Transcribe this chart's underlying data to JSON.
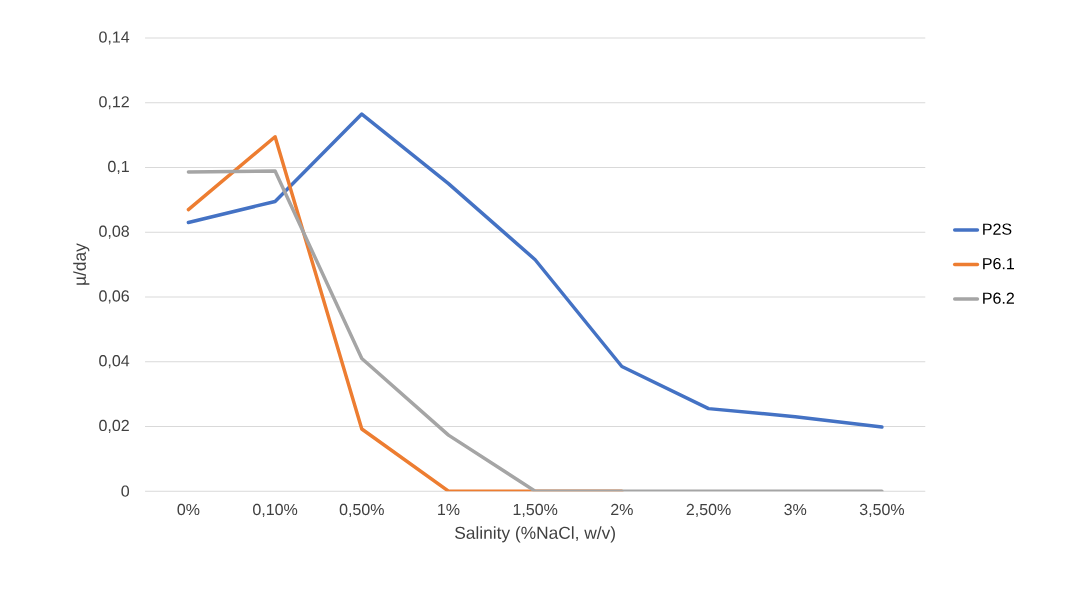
{
  "chart_data": {
    "type": "line",
    "xlabel": "Salinity (%NaCl, w/v)",
    "ylabel": "µ/day",
    "categories": [
      "0%",
      "0,10%",
      "0,50%",
      "1%",
      "1,50%",
      "2%",
      "2,50%",
      "3%",
      "3,50%"
    ],
    "series": [
      {
        "name": "P2S",
        "color": "#4472c4",
        "values": [
          0.083,
          0.0895,
          0.1165,
          0.095,
          0.0715,
          0.0385,
          0.0255,
          0.023,
          0.0198
        ]
      },
      {
        "name": "P6.1",
        "color": "#ed7d31",
        "values": [
          0.087,
          0.1095,
          0.0192,
          0,
          0,
          0,
          null,
          null,
          null
        ]
      },
      {
        "name": "P6.2",
        "color": "#a5a5a5",
        "values": [
          0.0986,
          0.0989,
          0.041,
          0.0173,
          0,
          0,
          0,
          0,
          0
        ]
      }
    ],
    "ylim": [
      0,
      0.14
    ],
    "yticks": [
      0,
      {
        "value": 0.02,
        "label": "0,02"
      },
      {
        "value": 0.04,
        "label": "0,04"
      },
      {
        "value": 0.06,
        "label": "0,06"
      },
      {
        "value": 0.08,
        "label": "0,08"
      },
      {
        "value": 0.1,
        "label": "0,1"
      },
      {
        "value": 0.12,
        "label": "0,12"
      },
      {
        "value": 0.14,
        "label": "0,14"
      }
    ],
    "grid": "y",
    "legend": "right"
  }
}
